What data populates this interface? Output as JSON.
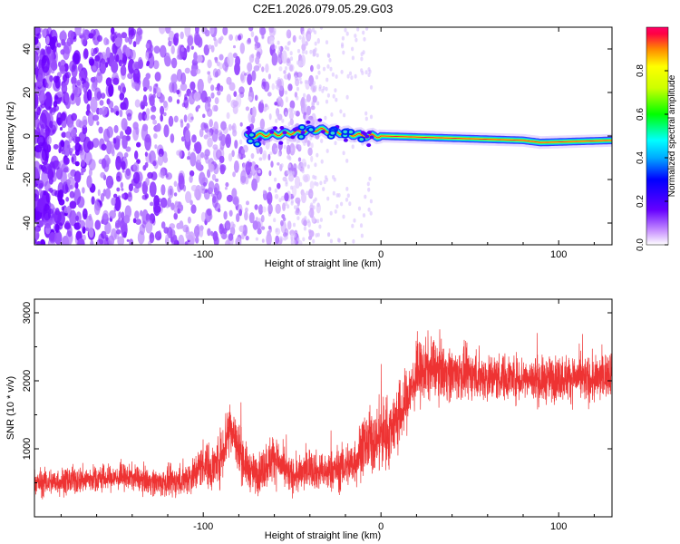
{
  "title": "C2E1.2026.079.05.29.G03",
  "chart_data": [
    {
      "type": "heatmap",
      "xlabel": "Height of straight line (km)",
      "ylabel": "Frequency (Hz)",
      "xlim": [
        -195,
        130
      ],
      "ylim": [
        -50,
        50
      ],
      "xticks": [
        -100,
        0,
        100
      ],
      "yticks": [
        -40,
        -20,
        0,
        20,
        40
      ],
      "colorbar": {
        "label": "Normalized spectral amplitude",
        "range": [
          0,
          1
        ],
        "ticks": [
          "0.0",
          "0.2",
          "0.4",
          "0.6",
          "0.8"
        ]
      },
      "features": {
        "noise_region_x": [
          -195,
          -35
        ],
        "signal_start_x": -75,
        "signal_frequency_hz": 0,
        "signal_trend": [
          {
            "x": -75,
            "y": 0
          },
          {
            "x": -55,
            "y": 1
          },
          {
            "x": -35,
            "y": 3
          },
          {
            "x": -10,
            "y": 0
          },
          {
            "x": 0,
            "y": 0
          },
          {
            "x": 40,
            "y": -1
          },
          {
            "x": 80,
            "y": -2
          },
          {
            "x": 90,
            "y": -3
          },
          {
            "x": 130,
            "y": -2
          }
        ]
      }
    },
    {
      "type": "line",
      "xlabel": "Height of straight line (km)",
      "ylabel": "SNR (10 * v/v)",
      "xlim": [
        -195,
        130
      ],
      "ylim": [
        0,
        3200
      ],
      "xticks": [
        -100,
        0,
        100
      ],
      "yticks": [
        1000,
        2000,
        3000
      ],
      "color": "#ee3333",
      "series": [
        {
          "x": [
            -195,
            -180,
            -160,
            -140,
            -125,
            -115,
            -105,
            -100,
            -95,
            -90,
            -85,
            -80,
            -75,
            -70,
            -65,
            -60,
            -55,
            -50,
            -45,
            -40,
            -35,
            -30,
            -25,
            -20,
            -15,
            -10,
            -5,
            0,
            5,
            10,
            15,
            20,
            25,
            30,
            40,
            50,
            60,
            70,
            80,
            90,
            100,
            110,
            120,
            130
          ],
          "values": [
            500,
            520,
            560,
            580,
            500,
            520,
            620,
            800,
            700,
            900,
            1350,
            1000,
            700,
            620,
            750,
            900,
            700,
            600,
            620,
            750,
            650,
            650,
            700,
            750,
            800,
            1050,
            1100,
            1200,
            1250,
            1450,
            1750,
            2050,
            2150,
            2200,
            2100,
            2100,
            2050,
            2050,
            2050,
            2000,
            2050,
            2050,
            2000,
            2150
          ],
          "spread": [
            180,
            180,
            180,
            160,
            180,
            200,
            250,
            300,
            300,
            350,
            450,
            350,
            260,
            250,
            300,
            320,
            260,
            230,
            240,
            260,
            240,
            260,
            280,
            300,
            330,
            380,
            420,
            500,
            450,
            450,
            420,
            400,
            400,
            380,
            350,
            320,
            320,
            300,
            300,
            300,
            300,
            300,
            300,
            300
          ]
        }
      ]
    }
  ]
}
